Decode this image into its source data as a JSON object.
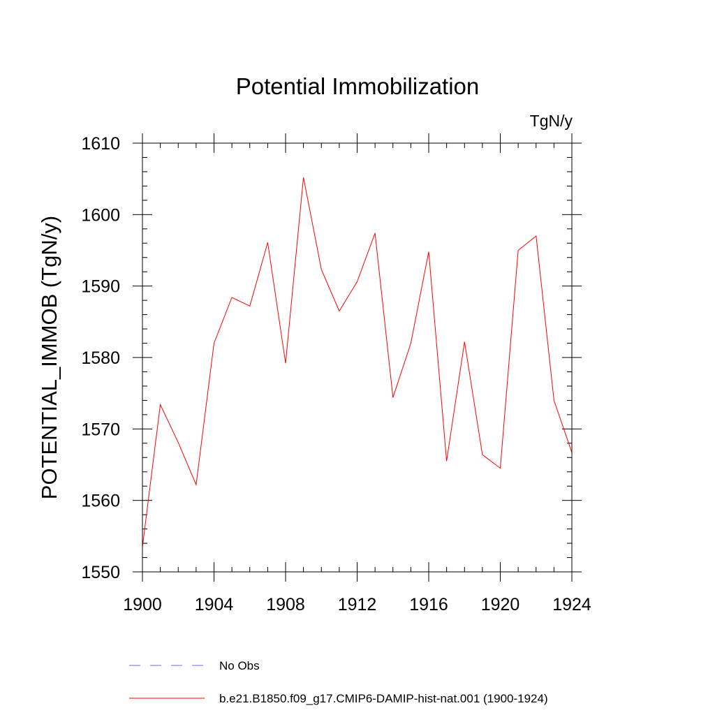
{
  "chart_data": {
    "type": "line",
    "title": "Potential Immobilization",
    "units_label": "TgN/y",
    "ylabel": "POTENTIAL_IMMOB  (TgN/y)",
    "xlabel": "",
    "xlim": [
      1900,
      1924
    ],
    "ylim": [
      1550,
      1610
    ],
    "x_ticks": [
      1900,
      1904,
      1908,
      1912,
      1916,
      1920,
      1924
    ],
    "y_ticks": [
      1550,
      1560,
      1570,
      1580,
      1590,
      1600,
      1610
    ],
    "grid": false,
    "legend_position": "bottom",
    "series": [
      {
        "name": "b.e21.B1850.f09_g17.CMIP6-DAMIP-hist-nat.001 (1900-1924)",
        "color": "#ff0000",
        "style": "solid",
        "x": [
          1900,
          1901,
          1902,
          1903,
          1904,
          1905,
          1906,
          1907,
          1908,
          1909,
          1910,
          1911,
          1912,
          1913,
          1914,
          1915,
          1916,
          1917,
          1918,
          1919,
          1920,
          1921,
          1922,
          1923,
          1924
        ],
        "values": [
          1553.5,
          1573.4,
          1568.1,
          1562.2,
          1582.0,
          1588.4,
          1587.2,
          1596.1,
          1579.2,
          1605.2,
          1592.3,
          1586.5,
          1590.6,
          1597.4,
          1574.4,
          1582.0,
          1594.8,
          1565.5,
          1582.2,
          1566.4,
          1564.5,
          1595.0,
          1597.0,
          1574.0,
          1566.7
        ]
      }
    ],
    "legend": [
      {
        "label": "No Obs",
        "color": "#6a6aff",
        "style": "dashed"
      },
      {
        "label": "b.e21.B1850.f09_g17.CMIP6-DAMIP-hist-nat.001 (1900-1924)",
        "color": "#ff0000",
        "style": "solid"
      }
    ]
  }
}
